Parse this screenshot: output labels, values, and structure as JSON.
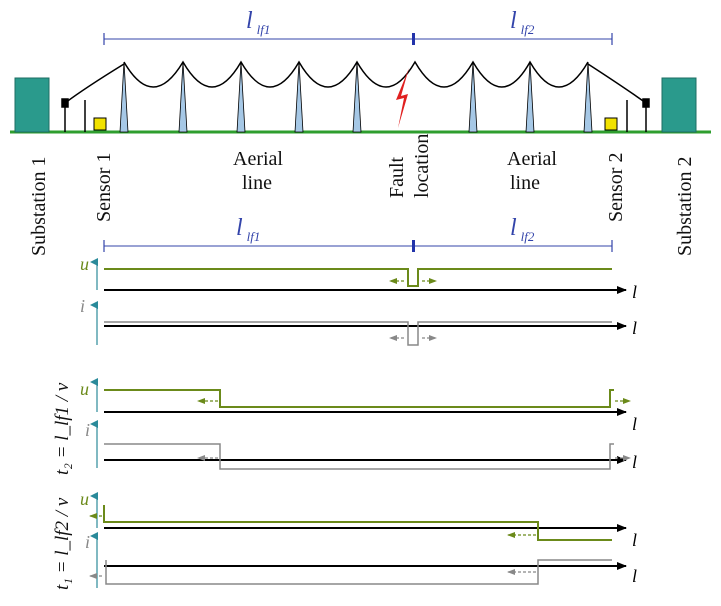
{
  "labels": {
    "substation1": "Substation 1",
    "substation2": "Substation 2",
    "sensor1": "Sensor 1",
    "sensor2": "Sensor 2",
    "aerial_left_1": "Aerial",
    "aerial_left_2": "line",
    "aerial_right_1": "Aerial",
    "aerial_right_2": "line",
    "fault_1": "Fault",
    "fault_2": "location"
  },
  "dimensions": {
    "l_main": "l",
    "sub_lf1": "lf1",
    "sub_lf2": "lf2"
  },
  "axes": {
    "u": "u",
    "i": "i",
    "l": "l"
  },
  "time_labels": {
    "t2": "t₂ = l_lf1 / v",
    "t1": "t₁ = l_lf2 / v"
  },
  "colors": {
    "ground": "#2e9e2e",
    "substation": "#2a9a8c",
    "sensor": "#f2e200",
    "tower": "#a6c8e6",
    "dimension": "#3344aa",
    "fault": "#e02020",
    "voltage": "#6b8a1a",
    "current": "#888888",
    "axis": "#000000",
    "vertical_axis": "#2a8a9a"
  },
  "icons": {
    "fault": "lightning-bolt-icon",
    "substation": "building-icon",
    "sensor": "sensor-box-icon"
  }
}
